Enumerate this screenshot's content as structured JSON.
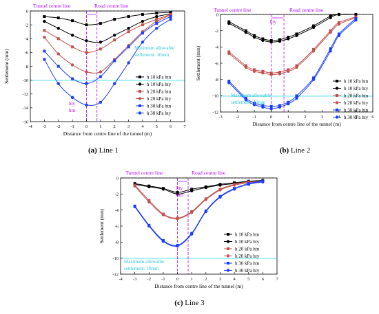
{
  "chart_data": [
    {
      "type": "line",
      "caption_letter": "(a)",
      "caption_text": " Line 1",
      "xlabel": "Distance from centre line of the tunnel (m)",
      "ylabel": "Settlement (mm)",
      "xlim": [
        -4,
        7
      ],
      "ylim": [
        -16,
        0
      ],
      "xticks": [
        "-4",
        "-3",
        "-2",
        "-1",
        "0",
        "1",
        "2",
        "3",
        "4",
        "5",
        "6",
        "7"
      ],
      "yticks": [
        "0",
        "-2",
        "-4",
        "-6",
        "-8",
        "-10",
        "-12",
        "-14",
        "-16"
      ],
      "annotations": {
        "tunnel": "Tunnel centre line",
        "road": "Road centre line",
        "max_line1": "Maximum allowable",
        "max_line2": "settlement: 10mm",
        "hty": "hty",
        "htn": "htn"
      },
      "series": [
        {
          "name": "h 10 kPa htn",
          "color": "#000000",
          "marker": "square",
          "x": [
            -3,
            -2,
            -1,
            0,
            1,
            2,
            3,
            4,
            5,
            6
          ],
          "y": [
            -0.8,
            -1.0,
            -1.4,
            -2.0,
            -1.8,
            -1.2,
            -0.8,
            -0.5,
            -0.3,
            -0.2
          ]
        },
        {
          "name": "h 10 kPa hty",
          "color": "#000000",
          "marker": "circle",
          "x": [
            -3,
            -2,
            -1,
            0,
            1,
            2,
            3,
            4,
            5,
            6
          ],
          "y": [
            -1.5,
            -2.5,
            -3.5,
            -4.3,
            -4.5,
            -3.5,
            -2.5,
            -1.5,
            -0.8,
            -0.4
          ]
        },
        {
          "name": "h 20 kPa htn",
          "color": "#c0504d",
          "marker": "square",
          "x": [
            -3,
            -2,
            -1,
            0,
            1,
            2,
            3,
            4,
            5,
            6
          ],
          "y": [
            -2.8,
            -4.0,
            -5.2,
            -6.0,
            -5.5,
            -4.2,
            -3.0,
            -2.0,
            -1.2,
            -0.5
          ]
        },
        {
          "name": "h 20 kPa hty",
          "color": "#c0504d",
          "marker": "circle",
          "x": [
            -3,
            -2,
            -1,
            0,
            1,
            2,
            3,
            4,
            5,
            6
          ],
          "y": [
            -3.8,
            -6.2,
            -7.8,
            -8.8,
            -8.8,
            -7.0,
            -5.0,
            -3.0,
            -1.5,
            -0.6
          ]
        },
        {
          "name": "h 30 kPa htn",
          "color": "#1a3cff",
          "marker": "square",
          "x": [
            -3,
            -2,
            -1,
            0,
            1,
            2,
            3,
            4,
            5,
            6
          ],
          "y": [
            -5.8,
            -8.0,
            -9.8,
            -10.5,
            -9.5,
            -7.2,
            -5.2,
            -3.2,
            -1.8,
            -0.8
          ]
        },
        {
          "name": "h 30 kPa hty",
          "color": "#1a3cff",
          "marker": "circle",
          "x": [
            -3,
            -2,
            -1,
            0,
            1,
            2,
            3,
            4,
            5,
            6
          ],
          "y": [
            -7.0,
            -10.5,
            -12.5,
            -13.6,
            -13.2,
            -10.5,
            -7.5,
            -4.5,
            -2.5,
            -1.2
          ]
        }
      ]
    },
    {
      "type": "line",
      "caption_letter": "(b)",
      "caption_text": " Line 2",
      "xlabel": "Distance from centre line of the tunnel (m)",
      "ylabel": "Settlement (mm)",
      "xlim": [
        -3,
        6
      ],
      "ylim": [
        -12,
        0
      ],
      "xticks": [
        "-3",
        "-2",
        "-1",
        "0",
        "1",
        "2",
        "3",
        "4",
        "5",
        "6"
      ],
      "yticks": [
        "0",
        "-2",
        "-4",
        "-6",
        "-8",
        "-10",
        "-12"
      ],
      "annotations": {
        "tunnel": "Tunnel centre line",
        "road": "Road centre line",
        "max_line1": "Maximum allowable",
        "max_line2": "settlement: 10mm",
        "hty": "hty"
      },
      "series": [
        {
          "name": "h 10 kPa htn",
          "color": "#000000",
          "marker": "square",
          "x": [
            -2.5,
            -1.5,
            -1,
            -0.5,
            0,
            0.5,
            1,
            1.5,
            2.5,
            3.5,
            4,
            5
          ],
          "y": [
            -0.9,
            -2.0,
            -2.6,
            -3.0,
            -3.2,
            -3.1,
            -2.8,
            -2.4,
            -1.4,
            -0.2,
            0.0,
            0.0
          ]
        },
        {
          "name": "h 10 kPa hty",
          "color": "#000000",
          "marker": "circle",
          "x": [
            -2.5,
            -1.5,
            -1,
            -0.5,
            0,
            0.5,
            1,
            1.5,
            2.5,
            3.5,
            4,
            5
          ],
          "y": [
            -1.1,
            -2.2,
            -2.8,
            -3.2,
            -3.4,
            -3.3,
            -3.0,
            -2.6,
            -1.6,
            -0.4,
            0.0,
            0.0
          ]
        },
        {
          "name": "h 20 kPa htn",
          "color": "#c0504d",
          "marker": "square",
          "x": [
            -2.5,
            -1.5,
            -1,
            -0.5,
            0,
            0.5,
            1,
            1.5,
            2.5,
            3.5,
            4,
            5
          ],
          "y": [
            -4.6,
            -6.3,
            -6.8,
            -7.0,
            -7.2,
            -7.1,
            -6.8,
            -6.3,
            -4.3,
            -2.0,
            -1.0,
            -0.3
          ]
        },
        {
          "name": "h 20 kPa hty",
          "color": "#c0504d",
          "marker": "circle",
          "x": [
            -2.5,
            -1.5,
            -1,
            -0.5,
            0,
            0.5,
            1,
            1.5,
            2.5,
            3.5,
            4,
            5
          ],
          "y": [
            -4.8,
            -6.5,
            -7.0,
            -7.2,
            -7.4,
            -7.3,
            -7.0,
            -6.5,
            -4.5,
            -2.2,
            -1.2,
            -0.4
          ]
        },
        {
          "name": "h 30 kPa htn",
          "color": "#1a3cff",
          "marker": "square",
          "x": [
            -2.5,
            -1.5,
            -1,
            -0.5,
            0,
            0.5,
            1,
            1.5,
            2.5,
            3.5,
            4,
            5
          ],
          "y": [
            -8.2,
            -10.3,
            -10.9,
            -11.2,
            -11.3,
            -11.2,
            -10.8,
            -10.0,
            -7.8,
            -4.2,
            -2.4,
            -0.5
          ]
        },
        {
          "name": "h 30 kPa hty",
          "color": "#1a3cff",
          "marker": "circle",
          "x": [
            -2.5,
            -1.5,
            -1,
            -0.5,
            0,
            0.5,
            1,
            1.5,
            2.5,
            3.5,
            4,
            5
          ],
          "y": [
            -8.4,
            -10.5,
            -11.1,
            -11.4,
            -11.6,
            -11.4,
            -11.0,
            -10.3,
            -8.0,
            -4.5,
            -2.6,
            -0.7
          ]
        }
      ]
    },
    {
      "type": "line",
      "caption_letter": "(c)",
      "caption_text": " Line 3",
      "xlabel": "Distance from centre line of the tunnel (m)",
      "ylabel": "Settlement (mm)",
      "xlim": [
        -4,
        7
      ],
      "ylim": [
        -12,
        0
      ],
      "xticks": [
        "-4",
        "-3",
        "-2",
        "-1",
        "0",
        "1",
        "2",
        "3",
        "4",
        "5",
        "6",
        "7"
      ],
      "yticks": [
        "0",
        "-2",
        "-4",
        "-6",
        "-8",
        "-10",
        "-12"
      ],
      "annotations": {
        "tunnel": "Tunnel centre line",
        "road": "Road centre line",
        "max_line1": "Maximum allowable",
        "max_line2": "settlement: 10mm",
        "hty": "hty",
        "htn": "htn"
      },
      "series": [
        {
          "name": "h 10 kPa htn",
          "color": "#000000",
          "marker": "square",
          "x": [
            -3,
            -2,
            -1,
            0,
            1,
            2,
            3,
            4,
            5,
            6
          ],
          "y": [
            -0.7,
            -1.0,
            -1.3,
            -1.8,
            -1.4,
            -1.1,
            -0.8,
            -0.6,
            -0.4,
            -0.3
          ]
        },
        {
          "name": "h 10 kPa hty",
          "color": "#000000",
          "marker": "circle",
          "x": [
            -3,
            -2,
            -1,
            0,
            1,
            2,
            3,
            4,
            5,
            6
          ],
          "y": [
            -0.8,
            -1.1,
            -1.4,
            -2.0,
            -1.6,
            -1.2,
            -0.9,
            -0.7,
            -0.5,
            -0.4
          ]
        },
        {
          "name": "h 20 kPa htn",
          "color": "#c0504d",
          "marker": "square",
          "x": [
            -3,
            -2,
            -1,
            0,
            1,
            2,
            3,
            4,
            5,
            6
          ],
          "y": [
            -0.9,
            -2.8,
            -4.5,
            -5.0,
            -4.2,
            -2.6,
            -1.4,
            -0.8,
            -0.5,
            -0.4
          ]
        },
        {
          "name": "h 20 kPa hty",
          "color": "#c0504d",
          "marker": "circle",
          "x": [
            -3,
            -2,
            -1,
            0,
            1,
            2,
            3,
            4,
            5,
            6
          ],
          "y": [
            -1.0,
            -3.0,
            -4.6,
            -5.1,
            -4.3,
            -2.7,
            -1.5,
            -0.9,
            -0.6,
            -0.5
          ]
        },
        {
          "name": "h 30 kPa htn",
          "color": "#1a3cff",
          "marker": "square",
          "x": [
            -3,
            -2,
            -1,
            0,
            1,
            2,
            3,
            4,
            5,
            6
          ],
          "y": [
            -3.5,
            -5.9,
            -7.8,
            -8.4,
            -6.9,
            -4.1,
            -2.3,
            -1.3,
            -0.7,
            -0.4
          ]
        },
        {
          "name": "h 30 kPa hty",
          "color": "#1a3cff",
          "marker": "circle",
          "x": [
            -3,
            -2,
            -1,
            0,
            1,
            2,
            3,
            4,
            5,
            6
          ],
          "y": [
            -3.6,
            -6.0,
            -7.9,
            -8.5,
            -7.0,
            -4.2,
            -2.4,
            -1.4,
            -0.8,
            -0.5
          ]
        }
      ]
    }
  ]
}
